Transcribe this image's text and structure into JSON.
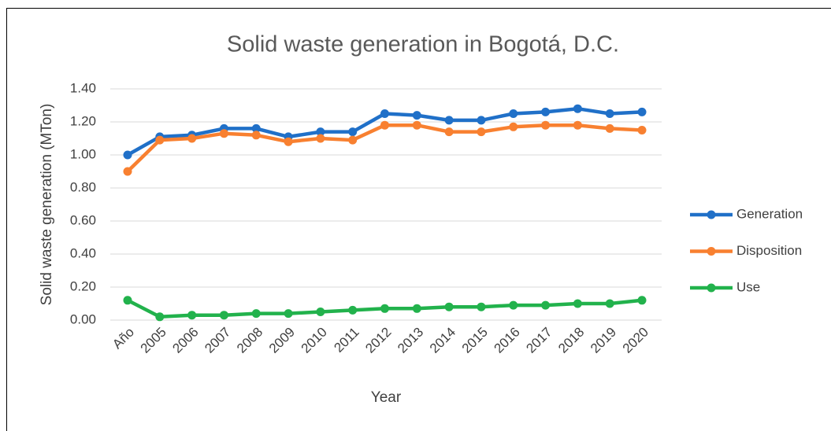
{
  "chart_data": {
    "type": "line",
    "title": "Solid waste generation in Bogotá, D.C.",
    "x_label": "Year",
    "y_label": "Solid waste generation (MTon)",
    "categories": [
      "Año",
      "2005",
      "2006",
      "2007",
      "2008",
      "2009",
      "2010",
      "2011",
      "2012",
      "2013",
      "2014",
      "2015",
      "2016",
      "2017",
      "2018",
      "2019",
      "2020"
    ],
    "series": [
      {
        "name": "Generation",
        "color": "#2070c8",
        "values": [
          1.0,
          1.11,
          1.12,
          1.16,
          1.16,
          1.11,
          1.14,
          1.14,
          1.25,
          1.24,
          1.21,
          1.21,
          1.25,
          1.26,
          1.28,
          1.25,
          1.26
        ]
      },
      {
        "name": "Disposition",
        "color": "#f88030",
        "values": [
          0.9,
          1.09,
          1.1,
          1.13,
          1.12,
          1.08,
          1.1,
          1.09,
          1.18,
          1.18,
          1.14,
          1.14,
          1.17,
          1.18,
          1.18,
          1.16,
          1.15
        ]
      },
      {
        "name": "Use",
        "color": "#22b24c",
        "values": [
          0.12,
          0.02,
          0.03,
          0.03,
          0.04,
          0.04,
          0.05,
          0.06,
          0.07,
          0.07,
          0.08,
          0.08,
          0.09,
          0.09,
          0.1,
          0.1,
          0.12
        ]
      }
    ],
    "ylim": [
      0,
      1.4
    ],
    "yticks": [
      {
        "value": 0,
        "label": "0.00"
      },
      {
        "value": 0.2,
        "label": "0.20"
      },
      {
        "value": 0.4,
        "label": "0.40"
      },
      {
        "value": 0.6,
        "label": "0.60"
      },
      {
        "value": 0.8,
        "label": "0.80"
      },
      {
        "value": 1.0,
        "label": "1.00"
      },
      {
        "value": 1.2,
        "label": "1.20"
      },
      {
        "value": 1.4,
        "label": "1.40"
      }
    ],
    "grid": true,
    "legend": "right"
  }
}
